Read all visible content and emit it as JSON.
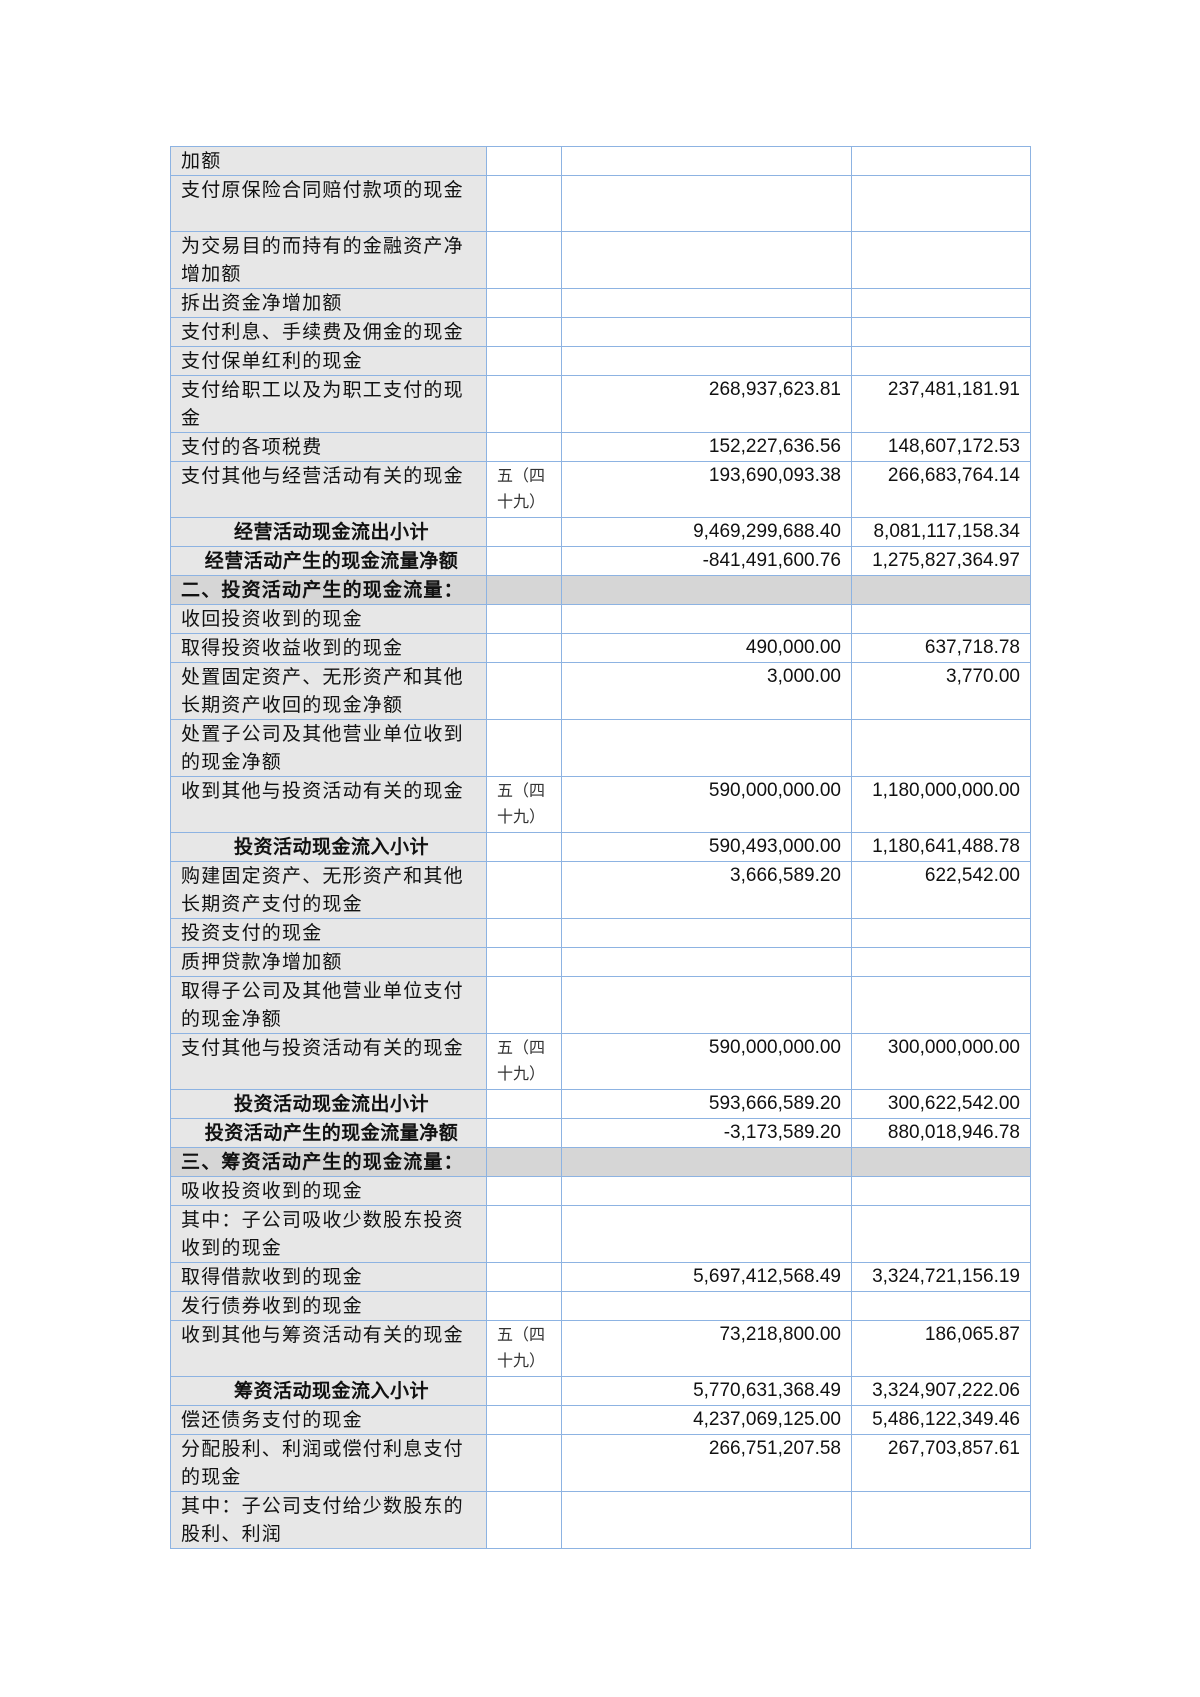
{
  "rows": [
    {
      "label": "加额",
      "note": "",
      "current": "",
      "previous": "",
      "type": "item",
      "lines": 1
    },
    {
      "label": "支付原保险合同赔付款项的现金",
      "note": "",
      "current": "",
      "previous": "",
      "type": "item",
      "lines": 2
    },
    {
      "label": "为交易目的而持有的金融资产净增加额",
      "note": "",
      "current": "",
      "previous": "",
      "type": "item",
      "lines": 2
    },
    {
      "label": "拆出资金净增加额",
      "note": "",
      "current": "",
      "previous": "",
      "type": "item",
      "lines": 1
    },
    {
      "label": "支付利息、手续费及佣金的现金",
      "note": "",
      "current": "",
      "previous": "",
      "type": "item",
      "lines": 1
    },
    {
      "label": "支付保单红利的现金",
      "note": "",
      "current": "",
      "previous": "",
      "type": "item",
      "lines": 1
    },
    {
      "label": "支付给职工以及为职工支付的现金",
      "note": "",
      "current": "268,937,623.81",
      "previous": "237,481,181.91",
      "type": "item",
      "lines": 2
    },
    {
      "label": "支付的各项税费",
      "note": "",
      "current": "152,227,636.56",
      "previous": "148,607,172.53",
      "type": "item",
      "lines": 1
    },
    {
      "label": "支付其他与经营活动有关的现金",
      "note": "五（四十九）",
      "current": "193,690,093.38",
      "previous": "266,683,764.14",
      "type": "item",
      "lines": 2
    },
    {
      "label": "经营活动现金流出小计",
      "note": "",
      "current": "9,469,299,688.40",
      "previous": "8,081,117,158.34",
      "type": "subtotal",
      "lines": 1
    },
    {
      "label": "经营活动产生的现金流量净额",
      "note": "",
      "current": "-841,491,600.76",
      "previous": "1,275,827,364.97",
      "type": "subtotal",
      "lines": 1
    },
    {
      "label": "二、投资活动产生的现金流量：",
      "note": "",
      "current": "",
      "previous": "",
      "type": "section",
      "lines": 1
    },
    {
      "label": "收回投资收到的现金",
      "note": "",
      "current": "",
      "previous": "",
      "type": "item",
      "lines": 1
    },
    {
      "label": "取得投资收益收到的现金",
      "note": "",
      "current": "490,000.00",
      "previous": "637,718.78",
      "type": "item",
      "lines": 1
    },
    {
      "label": "处置固定资产、无形资产和其他长期资产收回的现金净额",
      "note": "",
      "current": "3,000.00",
      "previous": "3,770.00",
      "type": "item",
      "lines": 2
    },
    {
      "label": "处置子公司及其他营业单位收到的现金净额",
      "note": "",
      "current": "",
      "previous": "",
      "type": "item",
      "lines": 2
    },
    {
      "label": "收到其他与投资活动有关的现金",
      "note": "五（四十九）",
      "current": "590,000,000.00",
      "previous": "1,180,000,000.00",
      "type": "item",
      "lines": 2
    },
    {
      "label": "投资活动现金流入小计",
      "note": "",
      "current": "590,493,000.00",
      "previous": "1,180,641,488.78",
      "type": "subtotal",
      "lines": 1
    },
    {
      "label": "购建固定资产、无形资产和其他长期资产支付的现金",
      "note": "",
      "current": "3,666,589.20",
      "previous": "622,542.00",
      "type": "item",
      "lines": 2
    },
    {
      "label": "投资支付的现金",
      "note": "",
      "current": "",
      "previous": "",
      "type": "item",
      "lines": 1
    },
    {
      "label": "质押贷款净增加额",
      "note": "",
      "current": "",
      "previous": "",
      "type": "item",
      "lines": 1
    },
    {
      "label": "取得子公司及其他营业单位支付的现金净额",
      "note": "",
      "current": "",
      "previous": "",
      "type": "item",
      "lines": 2
    },
    {
      "label": "支付其他与投资活动有关的现金",
      "note": "五（四十九）",
      "current": "590,000,000.00",
      "previous": "300,000,000.00",
      "type": "item",
      "lines": 2
    },
    {
      "label": "投资活动现金流出小计",
      "note": "",
      "current": "593,666,589.20",
      "previous": "300,622,542.00",
      "type": "subtotal",
      "lines": 1
    },
    {
      "label": "投资活动产生的现金流量净额",
      "note": "",
      "current": "-3,173,589.20",
      "previous": "880,018,946.78",
      "type": "subtotal",
      "lines": 1
    },
    {
      "label": "三、筹资活动产生的现金流量：",
      "note": "",
      "current": "",
      "previous": "",
      "type": "section",
      "lines": 1
    },
    {
      "label": "吸收投资收到的现金",
      "note": "",
      "current": "",
      "previous": "",
      "type": "item",
      "lines": 1
    },
    {
      "label": "其中：子公司吸收少数股东投资收到的现金",
      "note": "",
      "current": "",
      "previous": "",
      "type": "item",
      "lines": 2
    },
    {
      "label": "取得借款收到的现金",
      "note": "",
      "current": "5,697,412,568.49",
      "previous": "3,324,721,156.19",
      "type": "item",
      "lines": 1
    },
    {
      "label": "发行债券收到的现金",
      "note": "",
      "current": "",
      "previous": "",
      "type": "item",
      "lines": 1
    },
    {
      "label": "收到其他与筹资活动有关的现金",
      "note": "五（四十九）",
      "current": "73,218,800.00",
      "previous": "186,065.87",
      "type": "item",
      "lines": 2
    },
    {
      "label": "筹资活动现金流入小计",
      "note": "",
      "current": "5,770,631,368.49",
      "previous": "3,324,907,222.06",
      "type": "subtotal",
      "lines": 1
    },
    {
      "label": "偿还债务支付的现金",
      "note": "",
      "current": "4,237,069,125.00",
      "previous": "5,486,122,349.46",
      "type": "item",
      "lines": 1
    },
    {
      "label": "分配股利、利润或偿付利息支付的现金",
      "note": "",
      "current": "266,751,207.58",
      "previous": "267,703,857.61",
      "type": "item",
      "lines": 2
    },
    {
      "label": "其中：子公司支付给少数股东的股利、利润",
      "note": "",
      "current": "",
      "previous": "",
      "type": "item",
      "lines": 2
    }
  ],
  "colors": {
    "border": "#8db3e2",
    "label_bg": "#e7e7e7",
    "section_bg": "#d6d6d6"
  }
}
